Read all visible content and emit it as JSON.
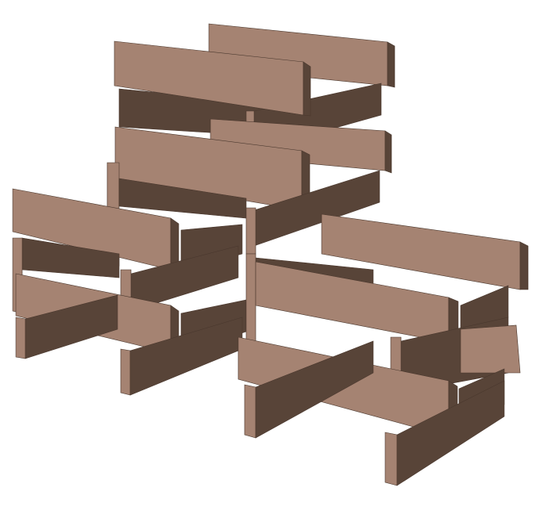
{
  "scene": {
    "subject": "stacked-plank-structure",
    "colors": {
      "background": "#ffffff",
      "plank_light": "#a58372",
      "plank_dark": "#584438",
      "plank_mid": "#7a5c4d",
      "edge": "#4a382e"
    }
  }
}
